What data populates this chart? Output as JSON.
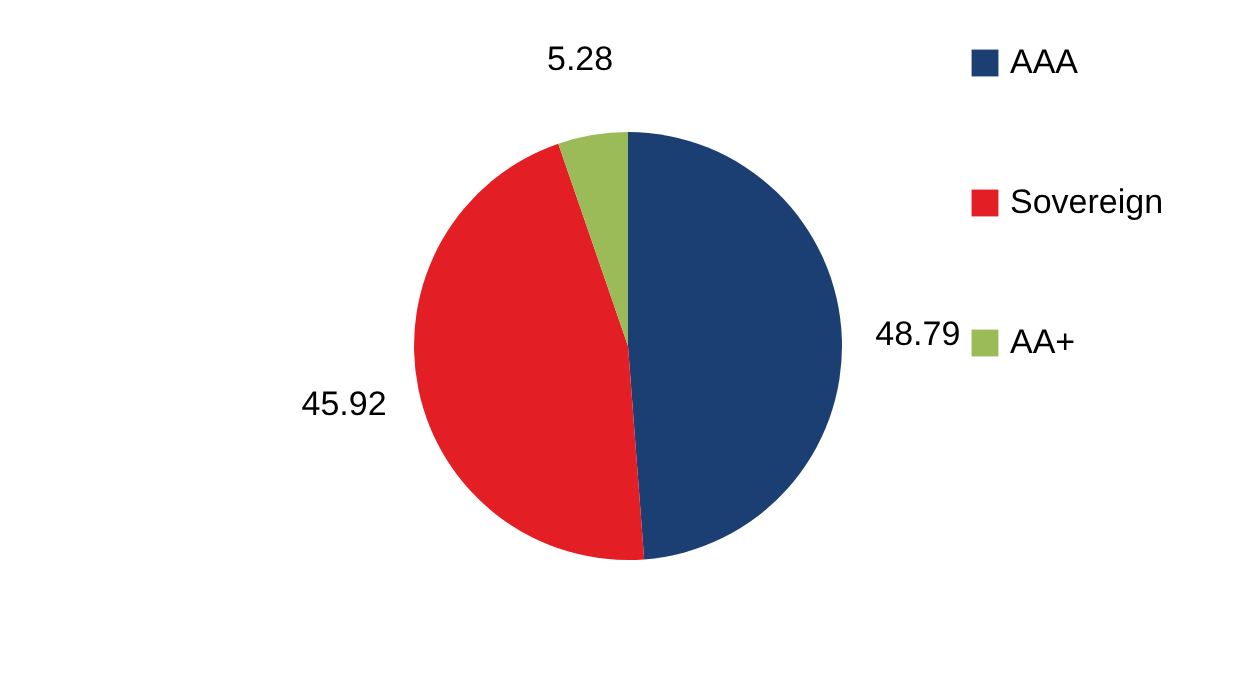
{
  "chart_data": {
    "type": "pie",
    "categories": [
      "AAA",
      "Sovereign",
      "AA+"
    ],
    "values": [
      48.79,
      45.92,
      5.28
    ],
    "colors": [
      "#1b3e73",
      "#e31e25",
      "#9bbb59"
    ],
    "data_labels": true,
    "legend": "right"
  }
}
